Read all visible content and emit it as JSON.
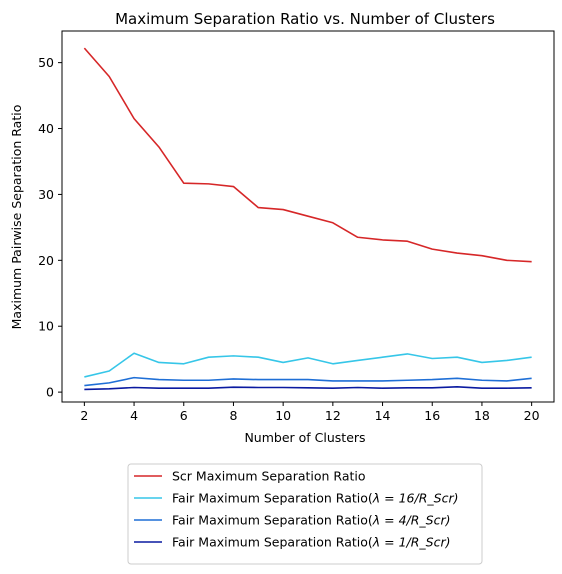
{
  "chart_data": {
    "type": "line",
    "title": "Maximum Separation Ratio vs. Number of Clusters",
    "xlabel": "Number of Clusters",
    "ylabel": "Maximum Pairwise Separation Ratio",
    "x": [
      2,
      3,
      4,
      5,
      6,
      7,
      8,
      9,
      10,
      11,
      12,
      13,
      14,
      15,
      16,
      17,
      18,
      19,
      20
    ],
    "xticks": [
      2,
      4,
      6,
      8,
      10,
      12,
      14,
      16,
      18,
      20
    ],
    "yticks": [
      0,
      10,
      20,
      30,
      40,
      50
    ],
    "xlim": [
      1.1,
      20.9
    ],
    "ylim": [
      -1.5,
      54.8
    ],
    "grid": false,
    "legend_position": "below",
    "series": [
      {
        "name": "Scr Maximum Separation Ratio",
        "legend_prefix": "Scr Maximum Separation Ratio",
        "legend_math": "",
        "color": "#d62728",
        "values": [
          52.2,
          47.9,
          41.5,
          37.2,
          31.7,
          31.6,
          31.2,
          28.0,
          27.7,
          26.7,
          25.7,
          23.5,
          23.1,
          22.9,
          21.7,
          21.1,
          20.7,
          20.0,
          19.8
        ]
      },
      {
        "name": "Fair Maximum Separation Ratio(λ = 16/R_Scr)",
        "legend_prefix": "Fair Maximum Separation Ratio(",
        "legend_math": "λ = 16/R_Scr)",
        "color": "#36c6e8",
        "values": [
          2.3,
          3.2,
          5.9,
          4.5,
          4.3,
          5.3,
          5.5,
          5.3,
          4.5,
          5.2,
          4.3,
          4.8,
          5.3,
          5.8,
          5.1,
          5.3,
          4.5,
          4.8,
          5.3
        ]
      },
      {
        "name": "Fair Maximum Separation Ratio(λ = 4/R_Scr)",
        "legend_prefix": "Fair Maximum Separation Ratio(",
        "legend_math": "λ = 4/R_Scr)",
        "color": "#1f6fd6",
        "values": [
          1.0,
          1.4,
          2.2,
          1.9,
          1.8,
          1.8,
          2.0,
          1.9,
          1.9,
          1.9,
          1.7,
          1.7,
          1.7,
          1.8,
          1.9,
          2.1,
          1.8,
          1.7,
          2.1
        ]
      },
      {
        "name": "Fair Maximum Separation Ratio(λ = 1/R_Scr)",
        "legend_prefix": "Fair Maximum Separation Ratio(",
        "legend_math": "λ = 1/R_Scr)",
        "color": "#0a1aa0",
        "values": [
          0.4,
          0.5,
          0.7,
          0.6,
          0.6,
          0.6,
          0.75,
          0.7,
          0.7,
          0.65,
          0.6,
          0.7,
          0.6,
          0.65,
          0.65,
          0.8,
          0.6,
          0.6,
          0.65
        ]
      }
    ]
  }
}
